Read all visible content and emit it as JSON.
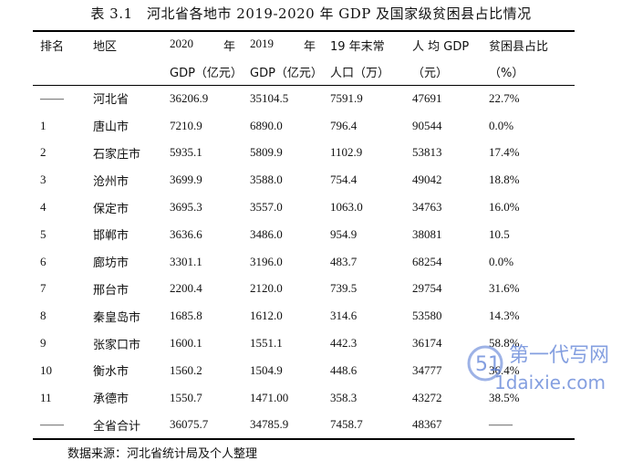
{
  "caption": "表 3.1　河北省各地市 2019-2020 年 GDP 及国家级贫困县占比情况",
  "header": {
    "rank": "排名",
    "region": "地区",
    "gdp2020": [
      "2020",
      "年",
      "GDP（亿元）"
    ],
    "gdp2019": [
      "2019",
      "年",
      "GDP（亿元）"
    ],
    "population": [
      "19 年末常",
      "人口（万）"
    ],
    "per_capita": [
      "人 均 GDP",
      "（元）"
    ],
    "poverty_ratio": [
      "贫困县占比",
      "（%）"
    ]
  },
  "rows": [
    {
      "rank": "——",
      "region": "河北省",
      "gdp2020": "36206.9",
      "gdp2019": "35104.5",
      "population": "7591.9",
      "per_capita": "47691",
      "poverty_ratio": "22.7%"
    },
    {
      "rank": "1",
      "region": "唐山市",
      "gdp2020": "7210.9",
      "gdp2019": "6890.0",
      "population": "796.4",
      "per_capita": "90544",
      "poverty_ratio": "0.0%"
    },
    {
      "rank": "2",
      "region": "石家庄市",
      "gdp2020": "5935.1",
      "gdp2019": "5809.9",
      "population": "1102.9",
      "per_capita": "53813",
      "poverty_ratio": "17.4%"
    },
    {
      "rank": "3",
      "region": "沧州市",
      "gdp2020": "3699.9",
      "gdp2019": "3588.0",
      "population": "754.4",
      "per_capita": "49042",
      "poverty_ratio": "18.8%"
    },
    {
      "rank": "4",
      "region": "保定市",
      "gdp2020": "3695.3",
      "gdp2019": "3557.0",
      "population": "1063.0",
      "per_capita": "34763",
      "poverty_ratio": "16.0%"
    },
    {
      "rank": "5",
      "region": "邯郸市",
      "gdp2020": "3636.6",
      "gdp2019": "3486.0",
      "population": "954.9",
      "per_capita": "38081",
      "poverty_ratio": "10.5"
    },
    {
      "rank": "6",
      "region": "廊坊市",
      "gdp2020": "3301.1",
      "gdp2019": "3196.0",
      "population": "483.7",
      "per_capita": "68254",
      "poverty_ratio": "0.0%"
    },
    {
      "rank": "7",
      "region": "邢台市",
      "gdp2020": "2200.4",
      "gdp2019": "2120.0",
      "population": "739.5",
      "per_capita": "29754",
      "poverty_ratio": "31.6%"
    },
    {
      "rank": "8",
      "region": "秦皇岛市",
      "gdp2020": "1685.8",
      "gdp2019": "1612.0",
      "population": "314.6",
      "per_capita": "53580",
      "poverty_ratio": "14.3%"
    },
    {
      "rank": "9",
      "region": "张家口市",
      "gdp2020": "1600.1",
      "gdp2019": "1551.1",
      "population": "442.3",
      "per_capita": "36174",
      "poverty_ratio": "58.8%"
    },
    {
      "rank": "10",
      "region": "衡水市",
      "gdp2020": "1560.2",
      "gdp2019": "1504.9",
      "population": "448.6",
      "per_capita": "34777",
      "poverty_ratio": "36.4%"
    },
    {
      "rank": "11",
      "region": "承德市",
      "gdp2020": "1550.7",
      "gdp2019": "1471.00",
      "population": "358.3",
      "per_capita": "43272",
      "poverty_ratio": "38.5%"
    },
    {
      "rank": "——",
      "region": "全省合计",
      "gdp2020": "36075.7",
      "gdp2019": "34785.9",
      "population": "7458.7",
      "per_capita": "48367",
      "poverty_ratio": "——"
    }
  ],
  "source_note": "数据来源：河北省统计局及个人整理",
  "watermark": {
    "brand": "第一代写网",
    "url": "1daixie.com",
    "logo_glyph": "51"
  },
  "colors": {
    "watermark": "#5b7fd6",
    "rule": "#000000"
  }
}
